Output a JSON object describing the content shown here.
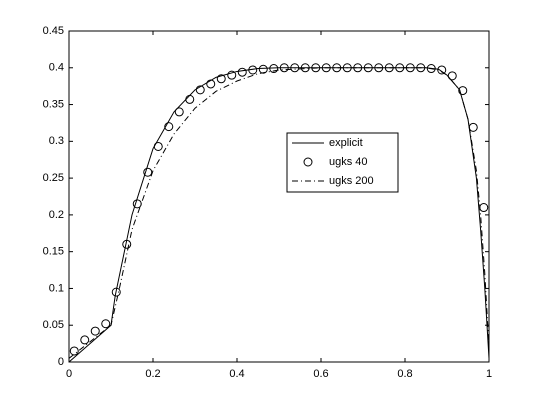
{
  "chart_data": {
    "type": "line",
    "xlim": [
      0,
      1
    ],
    "ylim": [
      0,
      0.45
    ],
    "xticks": [
      0,
      0.2,
      0.4,
      0.6,
      0.8,
      1
    ],
    "yticks": [
      0,
      0.05,
      0.1,
      0.15,
      0.2,
      0.25,
      0.3,
      0.35,
      0.4,
      0.45
    ],
    "grid": false,
    "legend": "center-right",
    "series": [
      {
        "name": "explicit",
        "color": "#000000",
        "style": "solid",
        "x": [
          0,
          0.1,
          0.11,
          0.15,
          0.2,
          0.25,
          0.3,
          0.35,
          0.4,
          0.45,
          0.5,
          0.85,
          0.88,
          0.9,
          0.93,
          0.95,
          0.97,
          0.98,
          0.99,
          1
        ],
        "values": [
          0,
          0.05,
          0.09,
          0.2,
          0.29,
          0.34,
          0.37,
          0.387,
          0.395,
          0.399,
          0.4,
          0.4,
          0.398,
          0.39,
          0.37,
          0.33,
          0.25,
          0.18,
          0.1,
          0.005
        ]
      },
      {
        "name": "ugks 40",
        "color": "#000000",
        "style": "circle",
        "x": [
          0.0125,
          0.0375,
          0.0625,
          0.0875,
          0.1125,
          0.1375,
          0.1625,
          0.1875,
          0.2125,
          0.2375,
          0.2625,
          0.2875,
          0.3125,
          0.3375,
          0.3625,
          0.3875,
          0.4125,
          0.4375,
          0.4625,
          0.4875,
          0.5125,
          0.5375,
          0.5625,
          0.5875,
          0.6125,
          0.6375,
          0.6625,
          0.6875,
          0.7125,
          0.7375,
          0.7625,
          0.7875,
          0.8125,
          0.8375,
          0.8625,
          0.8875,
          0.9125,
          0.9375,
          0.9625,
          0.9875
        ],
        "values": [
          0.015,
          0.03,
          0.042,
          0.052,
          0.095,
          0.16,
          0.215,
          0.258,
          0.293,
          0.32,
          0.34,
          0.357,
          0.37,
          0.378,
          0.385,
          0.39,
          0.394,
          0.397,
          0.398,
          0.399,
          0.4,
          0.4,
          0.4,
          0.4,
          0.4,
          0.4,
          0.4,
          0.4,
          0.4,
          0.4,
          0.4,
          0.4,
          0.4,
          0.4,
          0.399,
          0.397,
          0.389,
          0.369,
          0.319,
          0.21
        ]
      },
      {
        "name": "ugks 200",
        "color": "#000000",
        "style": "dashdot",
        "x": [
          0,
          0.1,
          0.12,
          0.15,
          0.2,
          0.25,
          0.3,
          0.35,
          0.4,
          0.45,
          0.5,
          0.6,
          0.85,
          0.88,
          0.9,
          0.93,
          0.95,
          0.97,
          0.98,
          0.99,
          1
        ],
        "values": [
          0.005,
          0.05,
          0.1,
          0.18,
          0.26,
          0.31,
          0.345,
          0.368,
          0.382,
          0.392,
          0.397,
          0.4,
          0.4,
          0.397,
          0.39,
          0.37,
          0.33,
          0.26,
          0.2,
          0.12,
          0.02
        ]
      }
    ]
  }
}
